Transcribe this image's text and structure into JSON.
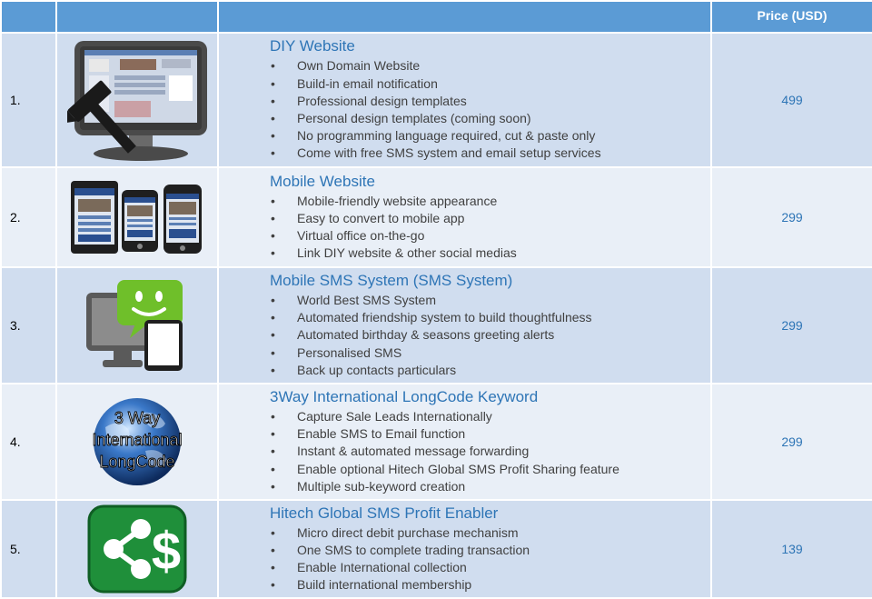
{
  "header": {
    "col1": "",
    "col2": "",
    "col3": "",
    "price_label": "Price (USD)"
  },
  "products": [
    {
      "number": "1.",
      "icon": "computer-hammer-icon",
      "title": "DIY Website",
      "features": [
        "Own Domain Website",
        "Build-in email notification",
        "Professional design templates",
        "Personal design templates (coming soon)",
        "No programming language required, cut & paste only",
        "Come with free SMS system and email setup services"
      ],
      "price": "499"
    },
    {
      "number": "2.",
      "icon": "mobile-devices-icon",
      "title": "Mobile Website",
      "features": [
        "Mobile-friendly website appearance",
        "Easy to convert to mobile app",
        "Virtual office on-the-go",
        "Link DIY website & other social medias"
      ],
      "price": "299"
    },
    {
      "number": "3.",
      "icon": "sms-chat-icon",
      "title": "Mobile SMS System (SMS System)",
      "features": [
        "World Best SMS System",
        "Automated friendship system to build thoughtfulness",
        "Automated birthday & seasons greeting alerts",
        "Personalised SMS",
        "Back up contacts particulars"
      ],
      "price": "299"
    },
    {
      "number": "4.",
      "icon": "globe-icon",
      "icon_text": [
        "3 Way",
        "International",
        "LongCode"
      ],
      "title": "3Way International LongCode Keyword",
      "features": [
        "Capture Sale Leads Internationally",
        "Enable SMS to Email function",
        "Instant & automated message forwarding",
        "Enable optional Hitech Global SMS Profit Sharing feature",
        "Multiple sub-keyword creation"
      ],
      "price": "299"
    },
    {
      "number": "5.",
      "icon": "share-dollar-icon",
      "title": "Hitech Global SMS Profit Enabler",
      "features": [
        "Micro direct debit purchase mechanism",
        "One SMS to complete trading transaction",
        "Enable International collection",
        "Build international membership"
      ],
      "price": "139"
    }
  ],
  "colors": {
    "header": "#5b9bd5",
    "row_dark": "#d0ddef",
    "row_light": "#e9eff7",
    "title_blue": "#2e75b6"
  }
}
